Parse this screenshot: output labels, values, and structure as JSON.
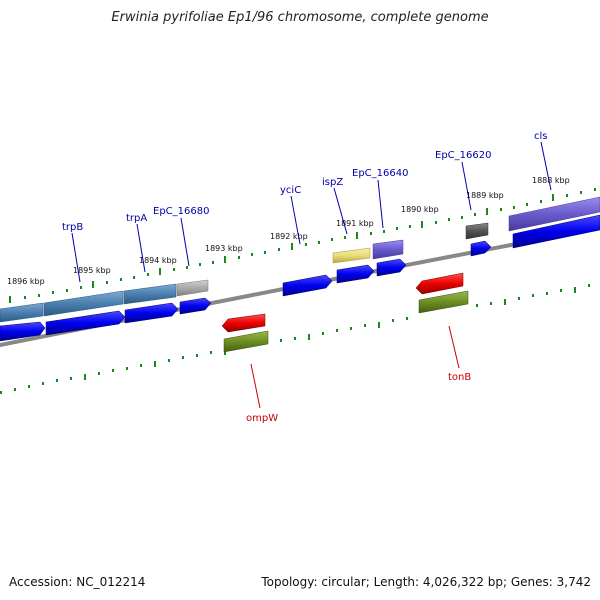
{
  "title": "Erwinia pyrifoliae Ep1/96 chromosome, complete genome",
  "footer": {
    "accession": "Accession: NC_012214",
    "summary": "Topology: circular; Length: 4,026,322 bp; Genes: 3,742"
  },
  "colors": {
    "backbone": "#888888",
    "tick": "#1a8a1a",
    "cds_forward": "#0000ee",
    "cds_reverse": "#ee0000",
    "rna_reverse": "#6b8e23",
    "label_forward": "#0000aa",
    "label_reverse": "#cc0000",
    "feature_trp": "#4a7fb0",
    "feature_grey": "#aaaaaa",
    "feature_yellow": "#e8dc7a",
    "feature_purple": "#6a5acd",
    "feature_dark": "#555555"
  },
  "position_labels": [
    "1896 kbp",
    "1895 kbp",
    "1894 kbp",
    "1893 kbp",
    "1892 kbp",
    "1891 kbp",
    "1890 kbp",
    "1889 kbp",
    "1888 kbp"
  ],
  "genes_forward": [
    "trpB",
    "trpA",
    "EpC_16680",
    "yciC",
    "ispZ",
    "EpC_16640",
    "EpC_16620",
    "cls"
  ],
  "genes_reverse": [
    "ompW",
    "tonB"
  ]
}
